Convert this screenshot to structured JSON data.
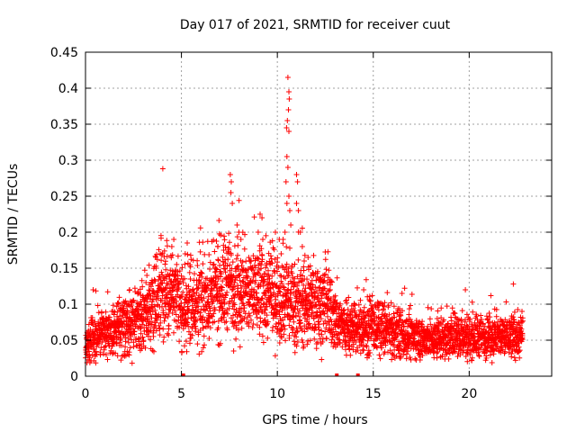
{
  "chart_data": {
    "type": "scatter",
    "title": "Day 017 of 2021, SRMTID for receiver cuut",
    "xlabel": "GPS time / hours",
    "ylabel": "SRMTID / TECUs",
    "xlim": [
      0,
      24.3
    ],
    "ylim": [
      0,
      0.45
    ],
    "xticks": [
      0,
      5,
      10,
      15,
      20
    ],
    "xtick_labels": [
      "0",
      "5",
      "10",
      "15",
      "20"
    ],
    "yticks": [
      0,
      0.05,
      0.1,
      0.15,
      0.2,
      0.25,
      0.3,
      0.35,
      0.4,
      0.45
    ],
    "ytick_labels": [
      "0",
      "0.05",
      "0.1",
      "0.15",
      "0.2",
      "0.25",
      "0.3",
      "0.35",
      "0.4",
      "0.45"
    ],
    "grid": true,
    "marker": "plus",
    "marker_color": "#ff0000",
    "zero_marks": [
      5.1,
      13.1,
      14.2
    ],
    "series": [
      {
        "name": "SRMTID",
        "x_range": [
          0,
          22.8
        ],
        "count": 3600,
        "envelope": [
          [
            0.0,
            0.04
          ],
          [
            0.5,
            0.055
          ],
          [
            1.0,
            0.06
          ],
          [
            1.5,
            0.065
          ],
          [
            2.0,
            0.07
          ],
          [
            2.5,
            0.075
          ],
          [
            3.0,
            0.08
          ],
          [
            3.5,
            0.1
          ],
          [
            4.0,
            0.12
          ],
          [
            4.5,
            0.12
          ],
          [
            5.0,
            0.09
          ],
          [
            5.5,
            0.1
          ],
          [
            6.0,
            0.1
          ],
          [
            6.5,
            0.11
          ],
          [
            7.0,
            0.12
          ],
          [
            7.5,
            0.13
          ],
          [
            8.0,
            0.12
          ],
          [
            8.5,
            0.115
          ],
          [
            9.0,
            0.12
          ],
          [
            9.5,
            0.115
          ],
          [
            10.0,
            0.11
          ],
          [
            10.5,
            0.11
          ],
          [
            11.0,
            0.1
          ],
          [
            11.5,
            0.1
          ],
          [
            12.0,
            0.1
          ],
          [
            12.5,
            0.1
          ],
          [
            13.0,
            0.08
          ],
          [
            13.5,
            0.07
          ],
          [
            14.0,
            0.065
          ],
          [
            15.0,
            0.07
          ],
          [
            16.0,
            0.06
          ],
          [
            17.0,
            0.055
          ],
          [
            18.0,
            0.05
          ],
          [
            19.0,
            0.055
          ],
          [
            20.0,
            0.055
          ],
          [
            21.0,
            0.055
          ],
          [
            22.0,
            0.055
          ],
          [
            22.8,
            0.055
          ]
        ],
        "spikes": [
          [
            7.55,
            0.28
          ],
          [
            7.6,
            0.27
          ],
          [
            7.58,
            0.255
          ],
          [
            7.65,
            0.24
          ],
          [
            7.9,
            0.21
          ],
          [
            8.0,
            0.2
          ],
          [
            8.1,
            0.19
          ],
          [
            9.1,
            0.225
          ],
          [
            9.2,
            0.22
          ],
          [
            9.0,
            0.2
          ],
          [
            9.9,
            0.2
          ],
          [
            10.1,
            0.19
          ],
          [
            10.2,
            0.17
          ],
          [
            10.55,
            0.415
          ],
          [
            10.6,
            0.395
          ],
          [
            10.62,
            0.385
          ],
          [
            10.58,
            0.37
          ],
          [
            10.52,
            0.355
          ],
          [
            10.48,
            0.345
          ],
          [
            10.6,
            0.34
          ],
          [
            10.5,
            0.305
          ],
          [
            10.55,
            0.29
          ],
          [
            10.45,
            0.27
          ],
          [
            10.6,
            0.25
          ],
          [
            10.5,
            0.24
          ],
          [
            10.65,
            0.23
          ],
          [
            10.7,
            0.21
          ],
          [
            10.4,
            0.2
          ],
          [
            10.3,
            0.19
          ],
          [
            11.0,
            0.28
          ],
          [
            11.05,
            0.27
          ],
          [
            11.0,
            0.24
          ],
          [
            11.1,
            0.23
          ],
          [
            11.2,
            0.2
          ],
          [
            11.3,
            0.18
          ],
          [
            11.4,
            0.16
          ],
          [
            4.6,
            0.19
          ],
          [
            4.5,
            0.18
          ],
          [
            3.9,
            0.17
          ],
          [
            5.3,
            0.185
          ],
          [
            5.2,
            0.17
          ],
          [
            6.9,
            0.18
          ],
          [
            7.2,
            0.175
          ],
          [
            11.6,
            0.165
          ],
          [
            14.5,
            0.12
          ],
          [
            16.5,
            0.115
          ],
          [
            19.8,
            0.12
          ],
          [
            22.3,
            0.128
          ],
          [
            0.4,
            0.12
          ],
          [
            2.3,
            0.12
          ],
          [
            3.2,
            0.14
          ]
        ]
      }
    ]
  }
}
